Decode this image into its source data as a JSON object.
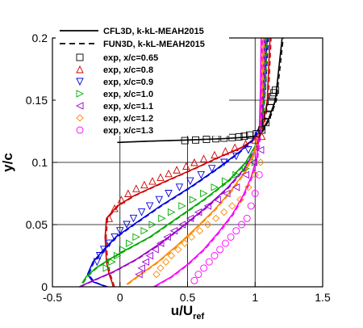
{
  "chart_data": {
    "type": "line",
    "xlabel": "u/U",
    "xlabel_sub": "ref",
    "ylabel": "y/c",
    "xlim": [
      -0.5,
      1.5
    ],
    "ylim": [
      0,
      0.2
    ],
    "xticks": [
      -0.5,
      0,
      0.5,
      1,
      1.5
    ],
    "xtick_labels": [
      "-0.5",
      "0",
      "0.5",
      "1",
      "1.5"
    ],
    "yticks": [
      0,
      0.05,
      0.1,
      0.15,
      0.2
    ],
    "ytick_labels": [
      "0",
      "0.05",
      "0.1",
      "0.15",
      "0.2"
    ],
    "grid": true,
    "legend_position": "top-left",
    "legend": [
      {
        "label": "CFL3D, k-kL-MEAH2015",
        "style": "solid",
        "color": "#000000"
      },
      {
        "label": "FUN3D, k-kL-MEAH2015",
        "style": "dashed",
        "color": "#000000"
      }
    ],
    "series": [
      {
        "name": "exp, x/c=0.65",
        "marker": "square",
        "color": "#000000",
        "x": [
          0.48,
          0.56,
          0.64,
          0.71,
          0.77,
          0.83,
          0.88,
          0.92,
          0.96,
          1.01,
          1.05,
          1.08,
          1.09,
          1.11,
          1.12,
          1.13,
          1.14,
          1.15
        ],
        "y": [
          0.1175,
          0.118,
          0.1185,
          0.119,
          0.1195,
          0.12,
          0.1205,
          0.121,
          0.122,
          0.123,
          0.126,
          0.132,
          0.138,
          0.144,
          0.149,
          0.153,
          0.156,
          0.158
        ],
        "cfd_x": [
          -0.02,
          0.2,
          0.5,
          0.75,
          0.9,
          1.0,
          1.05,
          1.1,
          1.15,
          1.17,
          1.2
        ],
        "cfd_y": [
          0.116,
          0.117,
          0.118,
          0.119,
          0.12,
          0.121,
          0.125,
          0.135,
          0.15,
          0.17,
          0.2
        ]
      },
      {
        "name": "exp, x/c=0.8",
        "marker": "triangle-up",
        "color": "#cc0000",
        "x": [
          -0.08,
          -0.04,
          0.01,
          0.06,
          0.12,
          0.18,
          0.24,
          0.3,
          0.36,
          0.42,
          0.49,
          0.55,
          0.62,
          0.7,
          0.78,
          0.85,
          0.93,
          1.0,
          1.05
        ],
        "y": [
          0.055,
          0.063,
          0.07,
          0.075,
          0.079,
          0.082,
          0.085,
          0.088,
          0.091,
          0.094,
          0.097,
          0.1,
          0.103,
          0.106,
          0.109,
          0.112,
          0.115,
          0.118,
          0.121
        ],
        "cfd_x": [
          -0.05,
          -0.06,
          -0.08,
          -0.1,
          -0.11,
          -0.1,
          -0.02,
          0.1,
          0.3,
          0.55,
          0.75,
          0.9,
          0.97,
          1.02,
          1.06,
          1.09,
          1.11
        ],
        "cfd_y": [
          0.0,
          0.004,
          0.01,
          0.02,
          0.04,
          0.055,
          0.065,
          0.073,
          0.083,
          0.095,
          0.105,
          0.112,
          0.117,
          0.122,
          0.13,
          0.15,
          0.2
        ]
      },
      {
        "name": "exp, x/c=0.9",
        "marker": "triangle-down",
        "color": "#0000dd",
        "x": [
          -0.17,
          -0.15,
          -0.12,
          -0.08,
          -0.04,
          0.0,
          0.05,
          0.1,
          0.16,
          0.22,
          0.29,
          0.36,
          0.44,
          0.52,
          0.6,
          0.68,
          0.77,
          0.86,
          0.95
        ],
        "y": [
          0.02,
          0.025,
          0.03,
          0.035,
          0.04,
          0.045,
          0.05,
          0.055,
          0.06,
          0.065,
          0.07,
          0.075,
          0.08,
          0.085,
          0.09,
          0.095,
          0.1,
          0.105,
          0.11
        ],
        "cfd_x": [
          -0.1,
          -0.2,
          -0.24,
          -0.2,
          -0.12,
          -0.03,
          0.1,
          0.3,
          0.52,
          0.72,
          0.88,
          0.98,
          1.04,
          1.07,
          1.09
        ],
        "cfd_y": [
          0.0,
          0.004,
          0.01,
          0.02,
          0.03,
          0.04,
          0.05,
          0.065,
          0.08,
          0.095,
          0.108,
          0.118,
          0.13,
          0.16,
          0.2
        ]
      },
      {
        "name": "exp, x/c=1.0",
        "marker": "triangle-right",
        "color": "#00aa00",
        "x": [
          -0.1,
          -0.06,
          -0.02,
          0.02,
          0.07,
          0.12,
          0.18,
          0.24,
          0.31,
          0.38,
          0.46,
          0.54,
          0.62,
          0.7,
          0.78,
          0.86,
          0.93,
          1.0
        ],
        "y": [
          0.015,
          0.02,
          0.025,
          0.03,
          0.035,
          0.04,
          0.045,
          0.05,
          0.055,
          0.06,
          0.065,
          0.07,
          0.075,
          0.08,
          0.085,
          0.09,
          0.095,
          0.1
        ],
        "cfd_x": [
          -0.28,
          -0.25,
          -0.18,
          -0.08,
          0.05,
          0.22,
          0.42,
          0.62,
          0.8,
          0.93,
          1.01,
          1.05,
          1.07,
          1.08
        ],
        "cfd_y": [
          0.003,
          0.008,
          0.015,
          0.022,
          0.03,
          0.04,
          0.055,
          0.07,
          0.085,
          0.1,
          0.115,
          0.13,
          0.16,
          0.2
        ]
      },
      {
        "name": "exp, x/c=1.1",
        "marker": "triangle-left",
        "color": "#9900cc",
        "x": [
          0.14,
          0.16,
          0.19,
          0.22,
          0.26,
          0.3,
          0.35,
          0.4,
          0.46,
          0.52,
          0.58,
          0.65,
          0.72,
          0.79,
          0.86,
          0.93,
          0.99,
          1.04
        ],
        "y": [
          0.01,
          0.015,
          0.02,
          0.025,
          0.03,
          0.035,
          0.04,
          0.045,
          0.05,
          0.055,
          0.06,
          0.065,
          0.07,
          0.075,
          0.08,
          0.09,
          0.1,
          0.11
        ],
        "cfd_x": [
          -0.3,
          -0.2,
          -0.05,
          0.12,
          0.3,
          0.48,
          0.65,
          0.8,
          0.92,
          1.0,
          1.04,
          1.06,
          1.07
        ],
        "cfd_y": [
          0.0,
          0.005,
          0.012,
          0.022,
          0.035,
          0.05,
          0.065,
          0.08,
          0.095,
          0.11,
          0.125,
          0.16,
          0.2
        ]
      },
      {
        "name": "exp, x/c=1.2",
        "marker": "diamond",
        "color": "#ff8800",
        "x": [
          0.27,
          0.3,
          0.34,
          0.38,
          0.43,
          0.48,
          0.53,
          0.59,
          0.65,
          0.71,
          0.77,
          0.83,
          0.89,
          0.95,
          1.0,
          1.04
        ],
        "y": [
          0.01,
          0.015,
          0.02,
          0.025,
          0.03,
          0.035,
          0.04,
          0.045,
          0.05,
          0.055,
          0.06,
          0.065,
          0.07,
          0.08,
          0.09,
          0.1
        ],
        "cfd_x": [
          0.05,
          0.15,
          0.28,
          0.42,
          0.56,
          0.7,
          0.82,
          0.92,
          0.99,
          1.03,
          1.05,
          1.06
        ],
        "cfd_y": [
          0.002,
          0.01,
          0.02,
          0.033,
          0.047,
          0.062,
          0.077,
          0.092,
          0.107,
          0.125,
          0.16,
          0.2
        ]
      },
      {
        "name": "exp, x/c=1.3",
        "marker": "circle",
        "color": "#ff00ff",
        "x": [
          0.55,
          0.58,
          0.62,
          0.66,
          0.7,
          0.74,
          0.78,
          0.82,
          0.86,
          0.9,
          0.94,
          0.97,
          1.0,
          1.03
        ],
        "y": [
          0.005,
          0.01,
          0.015,
          0.02,
          0.025,
          0.03,
          0.035,
          0.04,
          0.045,
          0.05,
          0.055,
          0.065,
          0.075,
          0.09
        ],
        "cfd_x": [
          0.25,
          0.38,
          0.5,
          0.62,
          0.73,
          0.83,
          0.91,
          0.97,
          1.01,
          1.03,
          1.04,
          1.045
        ],
        "cfd_y": [
          0.0,
          0.008,
          0.018,
          0.03,
          0.044,
          0.058,
          0.073,
          0.088,
          0.103,
          0.12,
          0.16,
          0.2
        ]
      }
    ]
  }
}
